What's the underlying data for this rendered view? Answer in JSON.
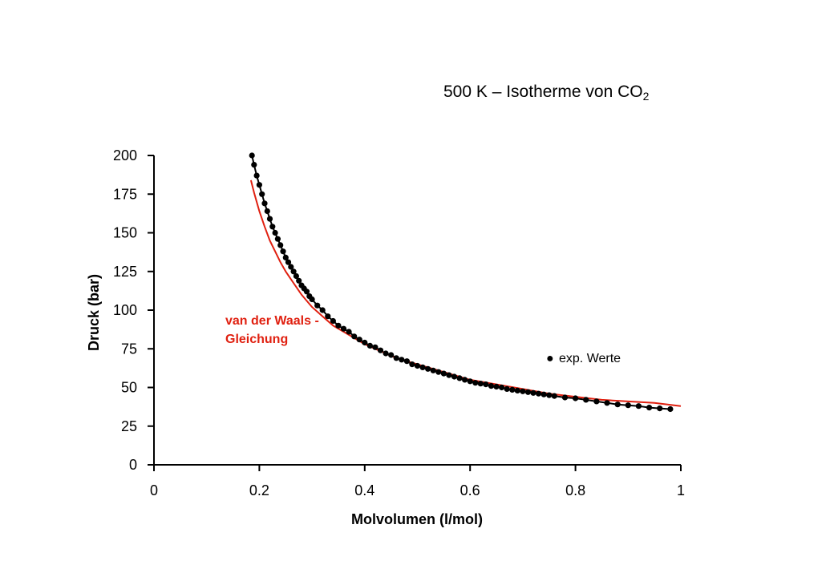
{
  "chart_data": {
    "type": "line",
    "title_main": "500 K – Isotherme von CO",
    "title_sub": "2",
    "xlabel": "Molvolumen (l/mol)",
    "ylabel": "Druck (bar)",
    "xlim": [
      0,
      1
    ],
    "ylim": [
      0,
      200
    ],
    "x_ticks": [
      "0",
      "0.2",
      "0.4",
      "0.6",
      "0.8",
      "1"
    ],
    "y_ticks": [
      "0",
      "25",
      "50",
      "75",
      "100",
      "125",
      "150",
      "175",
      "200"
    ],
    "grid": false,
    "annotations": {
      "vdw_line1": "van der Waals -",
      "vdw_line2": "Gleichung",
      "exp_label": "exp. Werte",
      "exp_marker": "●"
    },
    "series": [
      {
        "name": "exp. Werte",
        "kind": "scatter",
        "color": "#000000",
        "x": [
          0.186,
          0.19,
          0.195,
          0.2,
          0.205,
          0.21,
          0.215,
          0.22,
          0.225,
          0.23,
          0.235,
          0.24,
          0.245,
          0.25,
          0.255,
          0.26,
          0.265,
          0.27,
          0.275,
          0.28,
          0.285,
          0.29,
          0.295,
          0.3,
          0.31,
          0.32,
          0.33,
          0.34,
          0.35,
          0.36,
          0.37,
          0.38,
          0.39,
          0.4,
          0.41,
          0.42,
          0.43,
          0.44,
          0.45,
          0.46,
          0.47,
          0.48,
          0.49,
          0.5,
          0.51,
          0.52,
          0.53,
          0.54,
          0.55,
          0.56,
          0.57,
          0.58,
          0.59,
          0.6,
          0.61,
          0.62,
          0.63,
          0.64,
          0.65,
          0.66,
          0.67,
          0.68,
          0.69,
          0.7,
          0.71,
          0.72,
          0.73,
          0.74,
          0.75,
          0.76,
          0.78,
          0.8,
          0.82,
          0.84,
          0.86,
          0.88,
          0.9,
          0.92,
          0.94,
          0.96,
          0.98
        ],
        "y": [
          200,
          194,
          187,
          181,
          175,
          169,
          164,
          159,
          154,
          150,
          146,
          142,
          138,
          134,
          131,
          128,
          125,
          122,
          119,
          116,
          114,
          112,
          109,
          107,
          103,
          100,
          96,
          93,
          90,
          88,
          86,
          83,
          81,
          79,
          77,
          76,
          74,
          72,
          71,
          69,
          68,
          67,
          65,
          64,
          63,
          62,
          61,
          60,
          59,
          58,
          57,
          56,
          55,
          54,
          53,
          52.5,
          52,
          51,
          50.5,
          50,
          49,
          48.5,
          48,
          47.5,
          47,
          46.5,
          46,
          45.5,
          45,
          44.5,
          43.5,
          43,
          42,
          41,
          40,
          39,
          38.5,
          38,
          37,
          36.5,
          36
        ]
      },
      {
        "name": "van der Waals - Gleichung",
        "kind": "line",
        "color": "#e02010",
        "x": [
          0.184,
          0.19,
          0.2,
          0.21,
          0.22,
          0.23,
          0.24,
          0.25,
          0.26,
          0.27,
          0.28,
          0.29,
          0.3,
          0.32,
          0.34,
          0.36,
          0.38,
          0.4,
          0.42,
          0.44,
          0.46,
          0.48,
          0.5,
          0.55,
          0.6,
          0.65,
          0.7,
          0.75,
          0.8,
          0.85,
          0.9,
          0.95,
          1.0
        ],
        "y": [
          184,
          176,
          164,
          154,
          145,
          138,
          131,
          125,
          120,
          115,
          110,
          106,
          102,
          96,
          90,
          86,
          82,
          78,
          75,
          72,
          69,
          67,
          65,
          60,
          55,
          52,
          49,
          46,
          44,
          42,
          41,
          40,
          38
        ]
      }
    ]
  }
}
